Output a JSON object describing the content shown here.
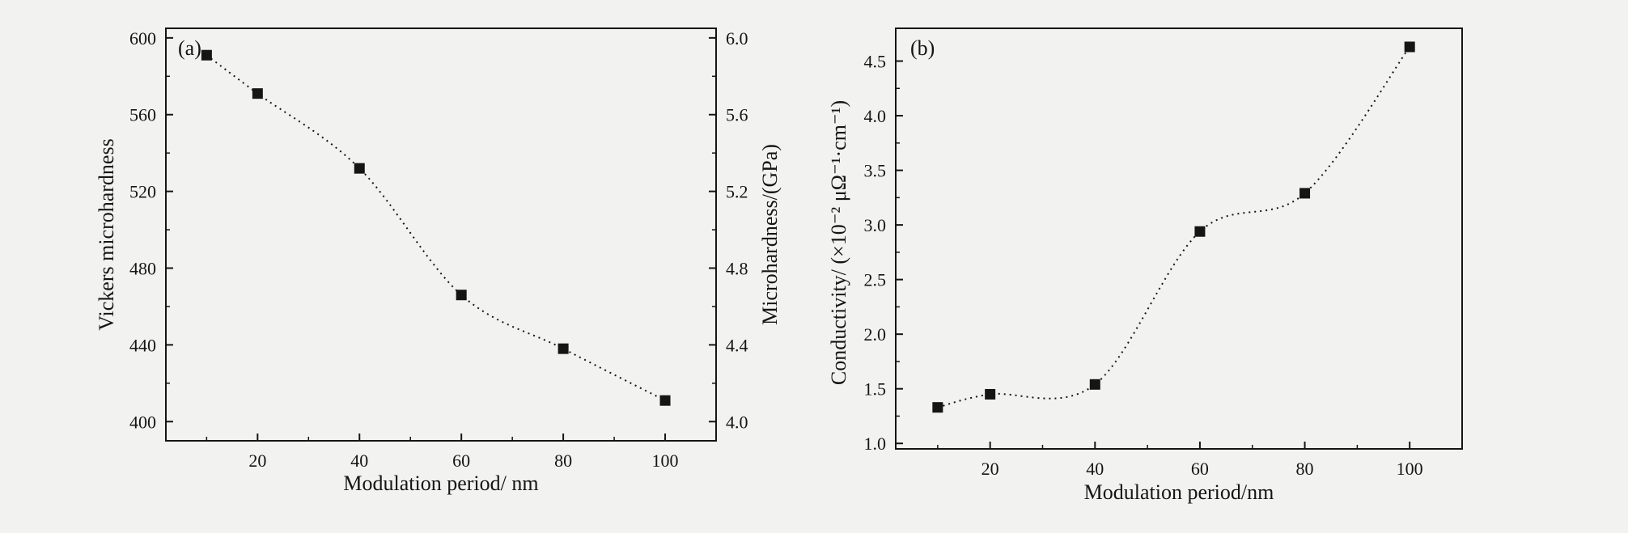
{
  "chart_data": [
    {
      "type": "scatter",
      "panel_label": "(a)",
      "xlabel": "Modulation period/ nm",
      "ylabel": "Vickers microhardness",
      "y2label": "Microhardness/(GPa)",
      "xlim": [
        2,
        110
      ],
      "ylim": [
        390,
        605
      ],
      "y2lim": [
        3.9,
        6.05
      ],
      "xticks": [
        "20",
        "40",
        "60",
        "80",
        "100"
      ],
      "yticks": [
        "400",
        "440",
        "480",
        "520",
        "560",
        "600"
      ],
      "y2ticks": [
        "4.0",
        "4.4",
        "4.8",
        "5.2",
        "5.6",
        "6.0"
      ],
      "line_style": "dotted spline",
      "marker": "filled square",
      "grid": false,
      "series": [
        {
          "x": [
            10,
            20,
            40,
            60,
            80,
            100
          ],
          "y": [
            591,
            571,
            532,
            466,
            438,
            411
          ]
        }
      ]
    },
    {
      "type": "scatter",
      "panel_label": "(b)",
      "xlabel": "Modulation period/nm",
      "ylabel": "Conductivity/ (×10⁻² μΩ⁻¹·cm⁻¹)",
      "xlim": [
        2,
        110
      ],
      "ylim": [
        0.95,
        4.8
      ],
      "xticks": [
        "20",
        "40",
        "60",
        "80",
        "100"
      ],
      "yticks": [
        "1.0",
        "1.5",
        "2.0",
        "2.5",
        "3.0",
        "3.5",
        "4.0",
        "4.5"
      ],
      "line_style": "dotted spline",
      "marker": "filled square",
      "grid": false,
      "series": [
        {
          "x": [
            10,
            20,
            40,
            60,
            80,
            100
          ],
          "y": [
            1.33,
            1.45,
            1.54,
            2.94,
            3.29,
            4.63
          ]
        }
      ]
    }
  ],
  "colors": {
    "ink": "#151515",
    "background": "#f2f2f0"
  }
}
